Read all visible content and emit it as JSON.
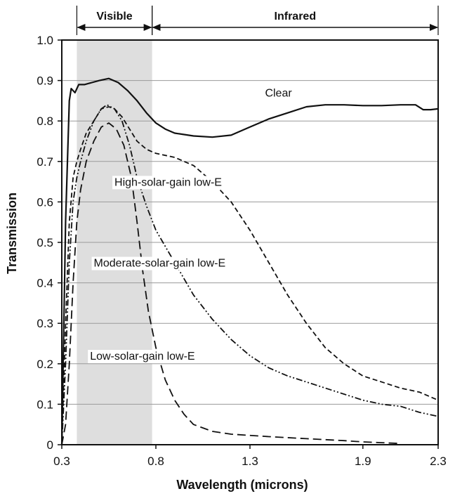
{
  "chart_data": {
    "type": "line",
    "xlabel": "Wavelength (microns)",
    "ylabel": "Transmission",
    "xlim": [
      0.3,
      2.3
    ],
    "ylim": [
      0,
      1.0
    ],
    "x_ticks": [
      0.3,
      0.8,
      1.3,
      1.9,
      2.3
    ],
    "x_tick_labels": [
      "0.3",
      "0.8",
      "1.3",
      "1.9",
      "2.3"
    ],
    "y_ticks": [
      0,
      0.1,
      0.2,
      0.3,
      0.4,
      0.5,
      0.6,
      0.7,
      0.8,
      0.9,
      1.0
    ],
    "y_tick_labels": [
      "0",
      "0.1",
      "0.2",
      "0.3",
      "0.4",
      "0.5",
      "0.6",
      "0.7",
      "0.8",
      "0.9",
      "1.0"
    ],
    "grid": "horizontal",
    "bands": [
      {
        "label": "Visible",
        "x_range": [
          0.38,
          0.78
        ],
        "shaded": true,
        "color": "#dedede"
      },
      {
        "label": "Infrared",
        "x_range": [
          0.78,
          2.3
        ],
        "shaded": false
      }
    ],
    "series": [
      {
        "name": "Clear",
        "style": "solid",
        "label_at": [
          1.38,
          0.86
        ],
        "points": [
          [
            0.3,
            0.0
          ],
          [
            0.32,
            0.55
          ],
          [
            0.34,
            0.85
          ],
          [
            0.35,
            0.88
          ],
          [
            0.37,
            0.87
          ],
          [
            0.39,
            0.89
          ],
          [
            0.42,
            0.89
          ],
          [
            0.46,
            0.895
          ],
          [
            0.5,
            0.9
          ],
          [
            0.55,
            0.905
          ],
          [
            0.6,
            0.895
          ],
          [
            0.65,
            0.875
          ],
          [
            0.7,
            0.85
          ],
          [
            0.75,
            0.82
          ],
          [
            0.8,
            0.795
          ],
          [
            0.85,
            0.78
          ],
          [
            0.9,
            0.77
          ],
          [
            1.0,
            0.763
          ],
          [
            1.1,
            0.76
          ],
          [
            1.2,
            0.765
          ],
          [
            1.3,
            0.785
          ],
          [
            1.4,
            0.805
          ],
          [
            1.5,
            0.82
          ],
          [
            1.6,
            0.835
          ],
          [
            1.7,
            0.84
          ],
          [
            1.8,
            0.84
          ],
          [
            1.9,
            0.838
          ],
          [
            2.0,
            0.838
          ],
          [
            2.1,
            0.84
          ],
          [
            2.18,
            0.84
          ],
          [
            2.22,
            0.828
          ],
          [
            2.26,
            0.828
          ],
          [
            2.3,
            0.83
          ]
        ]
      },
      {
        "name": "High-solar-gain low-E",
        "style": "dashed",
        "label_at": [
          0.58,
          0.64
        ],
        "points": [
          [
            0.3,
            0.0
          ],
          [
            0.32,
            0.3
          ],
          [
            0.34,
            0.55
          ],
          [
            0.36,
            0.66
          ],
          [
            0.38,
            0.7
          ],
          [
            0.4,
            0.73
          ],
          [
            0.43,
            0.77
          ],
          [
            0.47,
            0.8
          ],
          [
            0.51,
            0.83
          ],
          [
            0.55,
            0.835
          ],
          [
            0.58,
            0.83
          ],
          [
            0.62,
            0.81
          ],
          [
            0.66,
            0.78
          ],
          [
            0.7,
            0.75
          ],
          [
            0.75,
            0.73
          ],
          [
            0.8,
            0.72
          ],
          [
            0.9,
            0.71
          ],
          [
            1.0,
            0.69
          ],
          [
            1.1,
            0.65
          ],
          [
            1.2,
            0.6
          ],
          [
            1.3,
            0.53
          ],
          [
            1.4,
            0.45
          ],
          [
            1.5,
            0.37
          ],
          [
            1.6,
            0.3
          ],
          [
            1.7,
            0.24
          ],
          [
            1.8,
            0.2
          ],
          [
            1.9,
            0.17
          ],
          [
            2.0,
            0.155
          ],
          [
            2.1,
            0.14
          ],
          [
            2.2,
            0.13
          ],
          [
            2.3,
            0.11
          ]
        ]
      },
      {
        "name": "Moderate-solar-gain low-E",
        "style": "dash-dot-dot",
        "label_at": [
          0.47,
          0.44
        ],
        "points": [
          [
            0.3,
            0.0
          ],
          [
            0.32,
            0.2
          ],
          [
            0.34,
            0.45
          ],
          [
            0.36,
            0.6
          ],
          [
            0.38,
            0.66
          ],
          [
            0.4,
            0.7
          ],
          [
            0.43,
            0.75
          ],
          [
            0.47,
            0.8
          ],
          [
            0.51,
            0.83
          ],
          [
            0.54,
            0.84
          ],
          [
            0.58,
            0.83
          ],
          [
            0.62,
            0.8
          ],
          [
            0.66,
            0.74
          ],
          [
            0.7,
            0.66
          ],
          [
            0.75,
            0.59
          ],
          [
            0.8,
            0.53
          ],
          [
            0.9,
            0.45
          ],
          [
            1.0,
            0.37
          ],
          [
            1.1,
            0.31
          ],
          [
            1.2,
            0.26
          ],
          [
            1.3,
            0.22
          ],
          [
            1.4,
            0.19
          ],
          [
            1.5,
            0.17
          ],
          [
            1.6,
            0.155
          ],
          [
            1.7,
            0.14
          ],
          [
            1.8,
            0.125
          ],
          [
            1.9,
            0.11
          ],
          [
            2.0,
            0.1
          ],
          [
            2.1,
            0.095
          ],
          [
            2.2,
            0.08
          ],
          [
            2.3,
            0.07
          ]
        ]
      },
      {
        "name": "Low-solar-gain low-E",
        "style": "long-dash",
        "label_at": [
          0.45,
          0.21
        ],
        "points": [
          [
            0.3,
            0.0
          ],
          [
            0.32,
            0.05
          ],
          [
            0.34,
            0.2
          ],
          [
            0.36,
            0.4
          ],
          [
            0.38,
            0.55
          ],
          [
            0.4,
            0.63
          ],
          [
            0.43,
            0.7
          ],
          [
            0.47,
            0.75
          ],
          [
            0.51,
            0.785
          ],
          [
            0.55,
            0.795
          ],
          [
            0.59,
            0.78
          ],
          [
            0.63,
            0.74
          ],
          [
            0.67,
            0.66
          ],
          [
            0.7,
            0.55
          ],
          [
            0.73,
            0.43
          ],
          [
            0.76,
            0.33
          ],
          [
            0.8,
            0.24
          ],
          [
            0.85,
            0.16
          ],
          [
            0.9,
            0.11
          ],
          [
            0.95,
            0.075
          ],
          [
            1.0,
            0.05
          ],
          [
            1.1,
            0.033
          ],
          [
            1.2,
            0.026
          ],
          [
            1.4,
            0.02
          ],
          [
            1.6,
            0.015
          ],
          [
            1.8,
            0.01
          ],
          [
            1.9,
            0.007
          ],
          [
            2.0,
            0.005
          ],
          [
            2.1,
            0.003
          ]
        ]
      }
    ]
  }
}
